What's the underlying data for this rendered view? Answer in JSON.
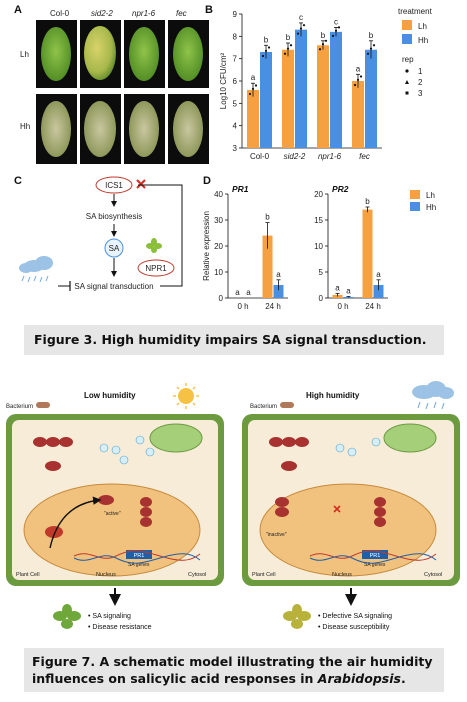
{
  "panelA": {
    "label": "A",
    "columns": [
      "Col-0",
      "sid2-2",
      "npr1-6",
      "fec"
    ],
    "rows": [
      "Lh",
      "Hh"
    ]
  },
  "panelB": {
    "label": "B",
    "legend_title_treatment": "treatment",
    "legend_treatments": [
      "Lh",
      "Hh"
    ],
    "legend_title_rep": "rep",
    "legend_reps": [
      "1",
      "2",
      "3"
    ],
    "colors": {
      "Lh": "#f5a142",
      "Hh": "#4a90e2"
    }
  },
  "panelC": {
    "label": "C",
    "ics1": "ICS1",
    "biosynthesis": "SA biosynthesis",
    "sa": "SA",
    "npr1": "NPR1",
    "transduction": "SA signal transduction"
  },
  "panelD": {
    "label": "D",
    "legend": [
      "Lh",
      "Hh"
    ]
  },
  "caption3": {
    "text": "Figure 3.   High humidity impairs SA signal transduction."
  },
  "model": {
    "low_title": "Low humidity",
    "high_title": "High humidity",
    "bacterium": "Bacterium",
    "plant_cell": "Plant Cell",
    "nucleus": "Nucleus",
    "cytosol": "Cytosol",
    "sa_genes": "SA genes",
    "pr1": "PR1",
    "active": "\"active\"",
    "inactive": "\"inactive\"",
    "outcome_low": [
      "SA signaling",
      "Disease resistance"
    ],
    "outcome_high": [
      "Defective SA signaling",
      "Disease susceptibility"
    ],
    "question": "?"
  },
  "caption7": {
    "line1": "Figure 7.   A schematic model illustrating the air humidity",
    "line2_pre": "influences on salicylic acid responses in ",
    "line2_ital": "Arabidopsis",
    "line2_post": "."
  },
  "chart_data": [
    {
      "type": "bar",
      "panel": "B",
      "categories": [
        "Col-0",
        "sid2-2",
        "npr1-6",
        "fec"
      ],
      "series": [
        {
          "name": "Lh",
          "values": [
            5.6,
            7.4,
            7.6,
            6.0
          ],
          "errors": [
            0.3,
            0.3,
            0.2,
            0.3
          ]
        },
        {
          "name": "Hh",
          "values": [
            7.3,
            8.3,
            8.2,
            7.4
          ],
          "errors": [
            0.3,
            0.3,
            0.2,
            0.4
          ]
        }
      ],
      "significance": [
        [
          "a",
          "b"
        ],
        [
          "b",
          "c"
        ],
        [
          "b",
          "c"
        ],
        [
          "a",
          "b"
        ]
      ],
      "ylabel": "Log10 CFU/cm²",
      "ylim": [
        3,
        9
      ],
      "yticks": [
        3,
        4,
        5,
        6,
        7,
        8,
        9
      ],
      "grid": false
    },
    {
      "type": "bar",
      "panel": "D",
      "title": "PR1",
      "categories": [
        "0 h",
        "24 h"
      ],
      "series": [
        {
          "name": "Lh",
          "values": [
            0,
            24
          ],
          "errors": [
            0,
            5
          ]
        },
        {
          "name": "Hh",
          "values": [
            0,
            5
          ],
          "errors": [
            0,
            2
          ]
        }
      ],
      "significance": [
        [
          "a",
          "a"
        ],
        [
          "b",
          "a"
        ]
      ],
      "ylabel": "Relative expression",
      "ylim": [
        0,
        40
      ],
      "yticks": [
        0,
        10,
        20,
        30,
        40
      ]
    },
    {
      "type": "bar",
      "panel": "D",
      "title": "PR2",
      "categories": [
        "0 h",
        "24 h"
      ],
      "series": [
        {
          "name": "Lh",
          "values": [
            0.6,
            17
          ],
          "errors": [
            0.3,
            0.5
          ]
        },
        {
          "name": "Hh",
          "values": [
            0.2,
            2.5
          ],
          "errors": [
            0.1,
            1
          ]
        }
      ],
      "significance": [
        [
          "a",
          "a"
        ],
        [
          "b",
          "a"
        ]
      ],
      "ylim": [
        0,
        20
      ],
      "yticks": [
        0,
        5,
        10,
        15,
        20
      ]
    }
  ]
}
